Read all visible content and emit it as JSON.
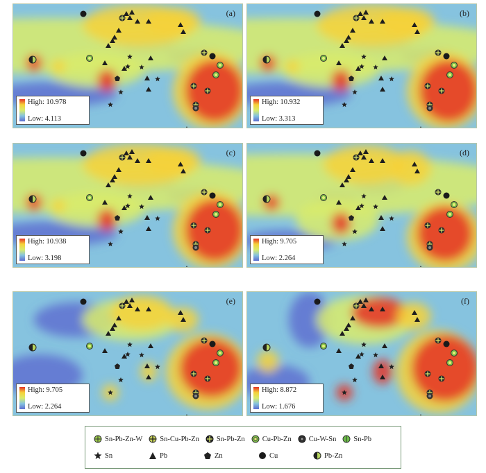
{
  "panels": [
    {
      "label": "(a)",
      "high": "High: 10.978",
      "low": "Low: 4.113",
      "variant": 0
    },
    {
      "label": "(b)",
      "high": "High: 10.932",
      "low": "Low: 3.313",
      "variant": 0
    },
    {
      "label": "(c)",
      "high": "High: 10.938",
      "low": "Low: 3.198",
      "variant": 1
    },
    {
      "label": "(d)",
      "high": "High: 9.705",
      "low": "Low: 2.264",
      "variant": 2
    },
    {
      "label": "(e)",
      "high": "High: 9.705",
      "low": "Low: 2.264",
      "variant": 3
    },
    {
      "label": "(f)",
      "high": "High: 8.872",
      "low": "Low: 1.676",
      "variant": 4
    }
  ],
  "colors": {
    "ramp_high": "#e53226",
    "ramp_mid_high": "#f6d23a",
    "ramp_mid": "#d9ec6b",
    "ramp_mid_low": "#86c3df",
    "ramp_low": "#5c6cd0"
  },
  "legend": {
    "row1": [
      {
        "icon": "sn-pb-zn-w-icon",
        "label": "Sn-Pb-Zn-W"
      },
      {
        "icon": "sn-cu-pb-zn-icon",
        "label": "Sn-Cu-Pb-Zn"
      },
      {
        "icon": "sn-pb-zn-icon",
        "label": "Sn-Pb-Zn"
      },
      {
        "icon": "cu-pb-zn-icon",
        "label": "Cu-Pb-Zn"
      },
      {
        "icon": "cu-w-sn-icon",
        "label": "Cu-W-Sn"
      },
      {
        "icon": "sn-pb-icon",
        "label": "Sn-Pb"
      }
    ],
    "row2": [
      {
        "icon": "star-icon",
        "label": "Sn"
      },
      {
        "icon": "triangle-icon",
        "label": "Pb"
      },
      {
        "icon": "pentagon-icon",
        "label": "Zn"
      },
      {
        "icon": "black-circle-icon",
        "label": "Cu"
      },
      {
        "icon": "half-circle-icon",
        "label": "Pb-Zn"
      }
    ]
  }
}
